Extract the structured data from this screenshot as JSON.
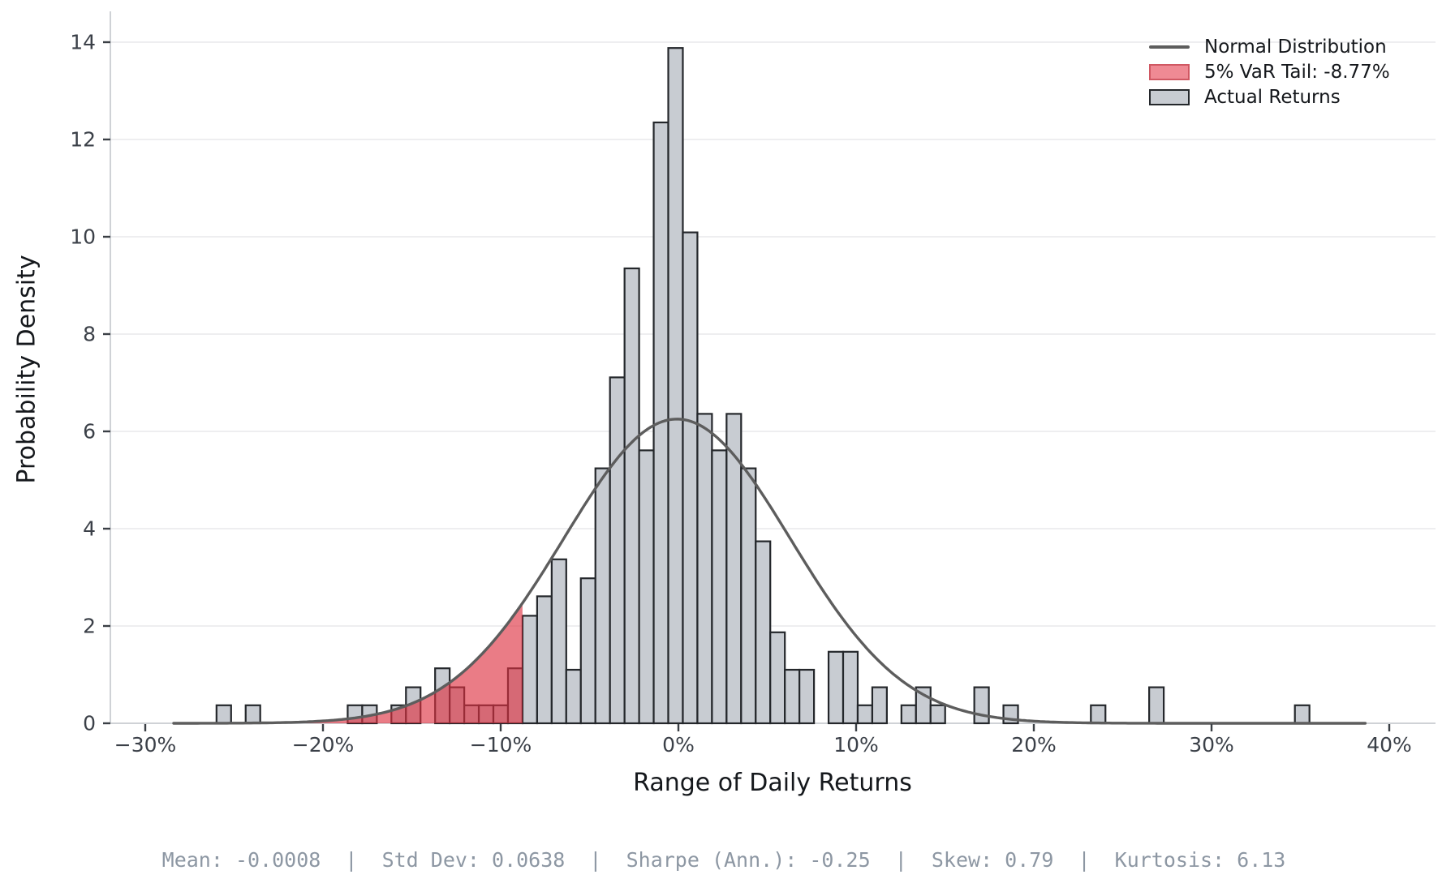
{
  "figure": {
    "background": "#ffffff"
  },
  "axes": {
    "x_label": "Range of Daily Returns",
    "y_label": "Probability Density",
    "x_ticks": [
      {
        "v": -0.3,
        "label": "−30%"
      },
      {
        "v": -0.2,
        "label": "−20%"
      },
      {
        "v": -0.1,
        "label": "−10%"
      },
      {
        "v": 0.0,
        "label": "0%"
      },
      {
        "v": 0.1,
        "label": "10%"
      },
      {
        "v": 0.2,
        "label": "20%"
      },
      {
        "v": 0.3,
        "label": "30%"
      },
      {
        "v": 0.4,
        "label": "40%"
      }
    ],
    "y_ticks": [
      {
        "v": 0,
        "label": "0"
      },
      {
        "v": 2,
        "label": "2"
      },
      {
        "v": 4,
        "label": "4"
      },
      {
        "v": 6,
        "label": "6"
      },
      {
        "v": 8,
        "label": "8"
      },
      {
        "v": 10,
        "label": "10"
      },
      {
        "v": 12,
        "label": "12"
      },
      {
        "v": 14,
        "label": "14"
      }
    ],
    "xlim": [
      -0.3196,
      0.426
    ],
    "ylim": [
      0,
      14.63
    ],
    "grid": "horizontal-only"
  },
  "legend": {
    "position": "upper-right",
    "items": [
      {
        "label": "Normal Distribution",
        "swatch": "line"
      },
      {
        "label": "5% VaR Tail: -8.77%",
        "swatch": "var"
      },
      {
        "label": "Actual Returns",
        "swatch": "bar"
      }
    ]
  },
  "stats": {
    "text": "Mean: -0.0008  |  Std Dev: 0.0638  |  Sharpe (Ann.): -0.25  |  Skew: 0.79  |  Kurtosis: 6.13",
    "mean": "-0.0008",
    "std_dev": "0.0638",
    "sharpe_ann": "-0.25",
    "skew": "0.79",
    "kurtosis": "6.13"
  },
  "colors": {
    "bar_fill": "#c8ccd2",
    "bar_edge": "#24272b",
    "curve": "#5d5d5d",
    "var_fill_rgba": "rgba(222,48,64,0.63)",
    "legend_var_fill": "#ef8a94",
    "legend_var_edge": "#d05863",
    "grid": "#e9e9ec",
    "spine": "#cfd2d6",
    "tick_mark": "#3a3f45",
    "tick_label": "#3b4048",
    "axis_title": "#15181c",
    "stats_text": "#8d97a3"
  },
  "chart_data": {
    "type": "bar",
    "subtype": "histogram-with-normal-overlay",
    "title": "",
    "xlabel": "Range of Daily Returns",
    "ylabel": "Probability Density",
    "xlim": [
      -0.3196,
      0.426
    ],
    "ylim": [
      0,
      14.63
    ],
    "bin_width": 0.0082,
    "bars": [
      {
        "x0": -0.2599,
        "x1": -0.2517,
        "h": 0.37
      },
      {
        "x0": -0.2435,
        "x1": -0.2353,
        "h": 0.37
      },
      {
        "x0": -0.1861,
        "x1": -0.1779,
        "h": 0.37
      },
      {
        "x0": -0.1779,
        "x1": -0.1697,
        "h": 0.37
      },
      {
        "x0": -0.1615,
        "x1": -0.1533,
        "h": 0.37
      },
      {
        "x0": -0.1533,
        "x1": -0.1451,
        "h": 0.74
      },
      {
        "x0": -0.1369,
        "x1": -0.1287,
        "h": 1.13
      },
      {
        "x0": -0.1287,
        "x1": -0.1205,
        "h": 0.74
      },
      {
        "x0": -0.1205,
        "x1": -0.1123,
        "h": 0.37
      },
      {
        "x0": -0.1123,
        "x1": -0.1041,
        "h": 0.37
      },
      {
        "x0": -0.1041,
        "x1": -0.0959,
        "h": 0.37
      },
      {
        "x0": -0.0959,
        "x1": -0.0877,
        "h": 1.13
      },
      {
        "x0": -0.0877,
        "x1": -0.0795,
        "h": 2.21
      },
      {
        "x0": -0.0795,
        "x1": -0.0713,
        "h": 2.61
      },
      {
        "x0": -0.0713,
        "x1": -0.0631,
        "h": 3.37
      },
      {
        "x0": -0.0631,
        "x1": -0.0549,
        "h": 1.1
      },
      {
        "x0": -0.0549,
        "x1": -0.0467,
        "h": 2.98
      },
      {
        "x0": -0.0467,
        "x1": -0.0385,
        "h": 5.24
      },
      {
        "x0": -0.0385,
        "x1": -0.0303,
        "h": 7.11
      },
      {
        "x0": -0.0303,
        "x1": -0.0221,
        "h": 9.35
      },
      {
        "x0": -0.0221,
        "x1": -0.0139,
        "h": 5.61
      },
      {
        "x0": -0.0139,
        "x1": -0.0057,
        "h": 12.35
      },
      {
        "x0": -0.0057,
        "x1": 0.0025,
        "h": 13.88
      },
      {
        "x0": 0.0025,
        "x1": 0.0107,
        "h": 10.09
      },
      {
        "x0": 0.0107,
        "x1": 0.0189,
        "h": 6.36
      },
      {
        "x0": 0.0189,
        "x1": 0.0271,
        "h": 5.61
      },
      {
        "x0": 0.0271,
        "x1": 0.0353,
        "h": 6.36
      },
      {
        "x0": 0.0353,
        "x1": 0.0435,
        "h": 5.24
      },
      {
        "x0": 0.0435,
        "x1": 0.0517,
        "h": 3.74
      },
      {
        "x0": 0.0517,
        "x1": 0.0599,
        "h": 1.87
      },
      {
        "x0": 0.0599,
        "x1": 0.0681,
        "h": 1.1
      },
      {
        "x0": 0.0681,
        "x1": 0.0763,
        "h": 1.1
      },
      {
        "x0": 0.0845,
        "x1": 0.0927,
        "h": 1.47
      },
      {
        "x0": 0.0927,
        "x1": 0.1009,
        "h": 1.47
      },
      {
        "x0": 0.1009,
        "x1": 0.1091,
        "h": 0.37
      },
      {
        "x0": 0.1091,
        "x1": 0.1173,
        "h": 0.74
      },
      {
        "x0": 0.1255,
        "x1": 0.1337,
        "h": 0.37
      },
      {
        "x0": 0.1337,
        "x1": 0.1419,
        "h": 0.74
      },
      {
        "x0": 0.1419,
        "x1": 0.1501,
        "h": 0.37
      },
      {
        "x0": 0.1665,
        "x1": 0.1747,
        "h": 0.74
      },
      {
        "x0": 0.1829,
        "x1": 0.1911,
        "h": 0.37
      },
      {
        "x0": 0.2321,
        "x1": 0.2403,
        "h": 0.37
      },
      {
        "x0": 0.2649,
        "x1": 0.2731,
        "h": 0.74
      },
      {
        "x0": 0.3469,
        "x1": 0.3551,
        "h": 0.37
      }
    ],
    "normal": {
      "mean": -0.0008,
      "std": 0.0638,
      "peak_density": 6.25,
      "x_min": -0.284,
      "x_max": 0.388
    },
    "var": {
      "level": "5%",
      "threshold": -0.0877,
      "label": "5% VaR Tail: -8.77%"
    },
    "legend_entries": [
      "Normal Distribution",
      "5% VaR Tail: -8.77%",
      "Actual Returns"
    ],
    "stats_footer": "Mean: -0.0008  |  Std Dev: 0.0638  |  Sharpe (Ann.): -0.25  |  Skew: 0.79  |  Kurtosis: 6.13"
  }
}
